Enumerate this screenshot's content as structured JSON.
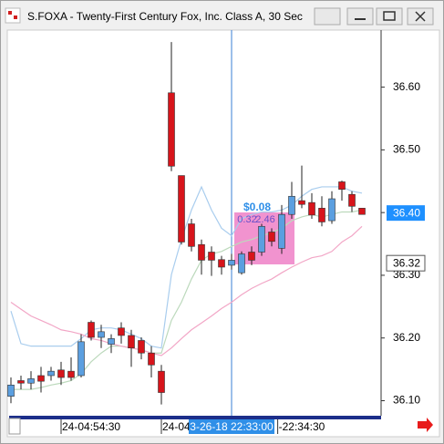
{
  "chart_data": {
    "type": "candlestick",
    "title": "S.FOXA - Twenty-First Century Fox, Inc. Class A, 30 Sec",
    "categories": [
      null,
      null,
      null,
      null,
      null,
      null,
      null,
      null,
      null,
      null,
      null,
      null,
      null,
      null,
      null,
      null,
      null,
      null,
      null,
      null,
      null,
      null,
      null,
      null,
      null,
      null,
      null,
      null,
      null,
      null,
      null,
      null,
      null,
      null,
      null,
      null
    ],
    "open": [
      36.107,
      36.132,
      36.128,
      36.14,
      36.14,
      36.149,
      36.147,
      36.14,
      36.225,
      36.201,
      36.19,
      36.216,
      36.204,
      36.196,
      36.176,
      36.147,
      36.591,
      36.459,
      36.382,
      36.349,
      36.337,
      36.325,
      36.316,
      36.304,
      36.337,
      36.337,
      36.369,
      36.343,
      36.397,
      36.419,
      36.416,
      36.407,
      36.387,
      36.449,
      36.429,
      36.407
    ],
    "high": [
      36.137,
      36.14,
      36.147,
      36.154,
      36.154,
      36.162,
      36.169,
      36.206,
      36.228,
      36.221,
      36.206,
      36.225,
      36.213,
      36.201,
      36.187,
      36.157,
      36.672,
      36.459,
      36.39,
      36.357,
      36.346,
      36.331,
      36.334,
      36.338,
      36.346,
      36.382,
      36.375,
      36.412,
      36.449,
      36.475,
      36.431,
      36.426,
      36.434,
      36.451,
      36.434,
      36.407
    ],
    "low": [
      36.096,
      36.118,
      36.118,
      36.113,
      36.132,
      36.125,
      36.132,
      36.137,
      36.196,
      36.184,
      36.176,
      36.191,
      36.154,
      36.166,
      36.137,
      36.094,
      36.466,
      36.349,
      36.338,
      36.301,
      36.299,
      36.301,
      36.309,
      36.301,
      36.316,
      36.331,
      36.346,
      36.334,
      36.39,
      36.407,
      36.39,
      36.378,
      36.382,
      36.419,
      36.401,
      36.397
    ],
    "close": [
      36.125,
      36.128,
      36.135,
      36.131,
      36.147,
      36.137,
      36.137,
      36.194,
      36.201,
      36.21,
      36.199,
      36.204,
      36.184,
      36.176,
      36.157,
      36.113,
      36.474,
      36.353,
      36.346,
      36.324,
      36.324,
      36.313,
      36.324,
      36.334,
      36.324,
      36.378,
      36.354,
      36.397,
      36.426,
      36.413,
      36.396,
      36.385,
      36.422,
      36.437,
      36.41,
      36.397
    ],
    "up_color": "#5b9fe0",
    "down_color": "#d7141b",
    "series": [
      {
        "color": "#a9cdee",
        "values": [
          36.243,
          36.191,
          36.187,
          36.187,
          36.187,
          36.187,
          36.187,
          36.199,
          36.213,
          36.216,
          36.216,
          36.213,
          36.206,
          36.199,
          36.187,
          36.184,
          36.301,
          36.357,
          36.404,
          36.441,
          36.404,
          36.375,
          36.363,
          36.39,
          36.397,
          36.401,
          36.401,
          36.404,
          36.412,
          36.426,
          36.437,
          36.441,
          36.441,
          36.441,
          36.434,
          36.431
        ]
      },
      {
        "color": "#bcd9bc",
        "values": [
          36.118,
          36.118,
          36.118,
          36.121,
          36.125,
          36.128,
          36.132,
          36.143,
          36.162,
          36.176,
          36.187,
          36.187,
          36.184,
          36.181,
          36.176,
          36.176,
          36.228,
          36.257,
          36.294,
          36.324,
          36.334,
          36.338,
          36.346,
          36.353,
          36.357,
          36.363,
          36.368,
          36.375,
          36.387,
          36.393,
          36.397,
          36.393,
          36.397,
          36.401,
          36.401,
          36.404
        ]
      },
      {
        "color": "#f2a6c6",
        "values": [
          36.257,
          36.246,
          36.235,
          36.228,
          36.221,
          36.213,
          36.21,
          36.206,
          36.199,
          36.196,
          36.191,
          36.187,
          36.184,
          36.181,
          36.176,
          36.172,
          36.184,
          36.199,
          36.213,
          36.224,
          36.235,
          36.247,
          36.257,
          36.269,
          36.279,
          36.287,
          36.294,
          36.304,
          36.313,
          36.321,
          36.328,
          36.331,
          36.338,
          36.353,
          36.363,
          36.378
        ]
      }
    ],
    "ylim": [
      36.076,
      36.691
    ],
    "yticks": [
      {
        "value": 36.1,
        "label": "36.10"
      },
      {
        "value": 36.2,
        "label": "36.20"
      },
      {
        "value": 36.3,
        "label": "36.30"
      },
      {
        "value": 36.4,
        "label": "36.40"
      },
      {
        "value": 36.5,
        "label": "36.50"
      },
      {
        "value": 36.6,
        "label": "36.60"
      }
    ],
    "xticks": [
      {
        "value": 5,
        "label": "24-04:54:30"
      },
      {
        "value": 15,
        "label": "24-04"
      },
      {
        "value": 22,
        "label": "3-26-18 22:33:00"
      },
      {
        "value": 26.6,
        "label": "-22:34:30"
      }
    ],
    "last_price": {
      "value": 36.4,
      "label": "36.40"
    },
    "crosshair_price": 36.32,
    "measure_labels": [
      "$0.08",
      "0.32",
      "2.46"
    ]
  }
}
